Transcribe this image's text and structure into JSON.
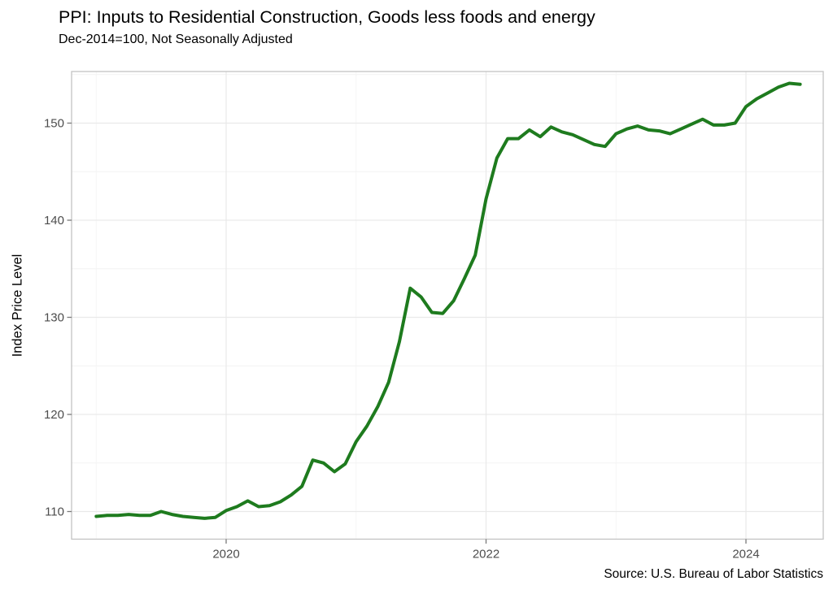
{
  "header": {
    "title": "PPI: Inputs to Residential Construction, Goods less foods and energy",
    "subtitle": "Dec-2014=100, Not Seasonally Adjusted"
  },
  "footer": {
    "source_note": "Source: U.S. Bureau of Labor Statistics"
  },
  "colors": {
    "line": "#1e7b1e",
    "background": "#ffffff",
    "grid_major": "#e9e9e9",
    "grid_minor": "#f4f4f4",
    "panel_border": "#c3c3c3",
    "tick": "#7a7a7a",
    "tick_label": "#4d4d4d",
    "text": "#000000"
  },
  "chart_data": {
    "type": "line",
    "title": "PPI: Inputs to Residential Construction, Goods less foods and energy",
    "subtitle": "Dec-2014=100, Not Seasonally Adjusted",
    "xlabel": "",
    "ylabel": "Index Price Level",
    "source_note": "Source: U.S. Bureau of Labor Statistics",
    "grid": true,
    "legend_position": "none",
    "x_axis": {
      "major_ticks": [
        {
          "label": "2020",
          "month_index": 12
        },
        {
          "label": "2022",
          "month_index": 36
        },
        {
          "label": "2024",
          "month_index": 60
        }
      ],
      "minor_tick_month_indices": [
        0,
        24,
        48
      ],
      "minor_tick_years": [
        "2019",
        "2021",
        "2023"
      ]
    },
    "y_axis": {
      "major_ticks": [
        110,
        120,
        130,
        140,
        150
      ],
      "minor_ticks": [
        115,
        125,
        135,
        145,
        155
      ],
      "range": [
        107.2,
        155.4
      ]
    },
    "series": [
      {
        "name": "PPI: Inputs to Residential Construction, Goods less foods and energy",
        "color": "#1e7b1e",
        "frequency": "monthly",
        "start_month": "2019-01",
        "end_month": "2024-06",
        "values": [
          109.5,
          109.6,
          109.6,
          109.7,
          109.6,
          109.6,
          110.0,
          109.7,
          109.5,
          109.4,
          109.3,
          109.4,
          110.1,
          110.5,
          111.1,
          110.5,
          110.6,
          111.0,
          111.7,
          112.6,
          115.3,
          115.0,
          114.1,
          114.9,
          117.2,
          118.8,
          120.8,
          123.3,
          127.5,
          133.0,
          132.1,
          130.5,
          130.4,
          131.7,
          134.0,
          136.4,
          142.2,
          146.4,
          148.4,
          148.4,
          149.3,
          148.6,
          149.6,
          149.1,
          148.8,
          148.3,
          147.8,
          147.6,
          148.9,
          149.4,
          149.7,
          149.3,
          149.2,
          148.9,
          149.4,
          149.9,
          150.4,
          149.8,
          149.8,
          150.0,
          151.7,
          152.5,
          153.1,
          153.7,
          154.1,
          154.0
        ]
      }
    ]
  }
}
